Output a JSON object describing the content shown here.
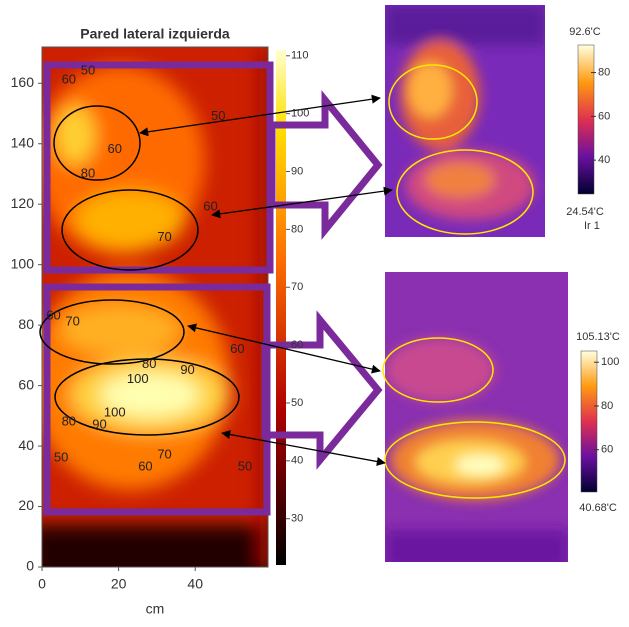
{
  "chart_data": [
    {
      "type": "heatmap",
      "title": "Pared lateral izquierda",
      "x_label": "cm",
      "xlim": [
        0,
        59
      ],
      "xticks": [
        0,
        20,
        40
      ],
      "ylim": [
        0,
        172
      ],
      "yticks": [
        0,
        20,
        40,
        60,
        80,
        100,
        120,
        140,
        160
      ],
      "colorbar": {
        "lim": [
          22,
          111
        ],
        "ticks": [
          30,
          40,
          50,
          60,
          70,
          80,
          90,
          100,
          110
        ]
      },
      "contour_labels": [
        {
          "value": 50,
          "x": 12,
          "y": 164
        },
        {
          "value": 60,
          "x": 7,
          "y": 161
        },
        {
          "value": 60,
          "x": 19,
          "y": 138
        },
        {
          "value": 80,
          "x": 12,
          "y": 130
        },
        {
          "value": 50,
          "x": 46,
          "y": 149
        },
        {
          "value": 60,
          "x": 44,
          "y": 119
        },
        {
          "value": 70,
          "x": 32,
          "y": 109
        },
        {
          "value": 60,
          "x": 3,
          "y": 83
        },
        {
          "value": 70,
          "x": 8,
          "y": 81
        },
        {
          "value": 80,
          "x": 28,
          "y": 67
        },
        {
          "value": 90,
          "x": 38,
          "y": 65
        },
        {
          "value": 60,
          "x": 51,
          "y": 72
        },
        {
          "value": 100,
          "x": 25,
          "y": 62
        },
        {
          "value": 100,
          "x": 19,
          "y": 51
        },
        {
          "value": 90,
          "x": 15,
          "y": 47
        },
        {
          "value": 80,
          "x": 7,
          "y": 48
        },
        {
          "value": 70,
          "x": 32,
          "y": 37
        },
        {
          "value": 60,
          "x": 27,
          "y": 33
        },
        {
          "value": 50,
          "x": 53,
          "y": 33
        },
        {
          "value": 50,
          "x": 5,
          "y": 36
        }
      ]
    },
    {
      "type": "thermal-image",
      "max_label": "92.6'C",
      "min_label": "24.54'C",
      "note": "Ir 1",
      "clim": [
        24.54,
        92.6
      ],
      "ticks": [
        40,
        60,
        80
      ]
    },
    {
      "type": "thermal-image",
      "max_label": "105.13'C",
      "min_label": "40.68'C",
      "clim": [
        40.68,
        105.13
      ],
      "ticks": [
        60,
        80,
        100
      ]
    }
  ]
}
